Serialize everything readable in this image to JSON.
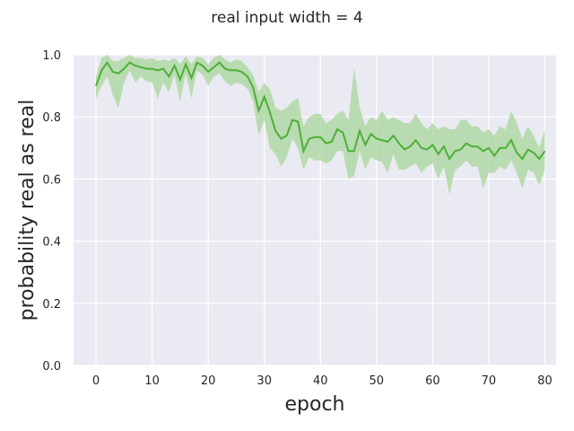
{
  "chart_data": {
    "type": "line",
    "title": "real input width = 4",
    "xlabel": "epoch",
    "ylabel": "probability real as real",
    "xlim": [
      -4,
      82
    ],
    "ylim": [
      0.0,
      1.0
    ],
    "xticks": [
      0,
      10,
      20,
      30,
      40,
      50,
      60,
      70,
      80
    ],
    "yticks": [
      0.0,
      0.2,
      0.4,
      0.6,
      0.8,
      1.0
    ],
    "xtick_labels": [
      "0",
      "10",
      "20",
      "30",
      "40",
      "50",
      "60",
      "70",
      "80"
    ],
    "ytick_labels": [
      "0.0",
      "0.2",
      "0.4",
      "0.6",
      "0.8",
      "1.0"
    ],
    "grid": true,
    "background": "#eaeaf2",
    "line_color": "#4daf36",
    "band_color": "#a8d69b",
    "x": [
      0,
      1,
      2,
      3,
      4,
      5,
      6,
      7,
      8,
      9,
      10,
      11,
      12,
      13,
      14,
      15,
      16,
      17,
      18,
      19,
      20,
      21,
      22,
      23,
      24,
      25,
      26,
      27,
      28,
      29,
      30,
      31,
      32,
      33,
      34,
      35,
      36,
      37,
      38,
      39,
      40,
      41,
      42,
      43,
      44,
      45,
      46,
      47,
      48,
      49,
      50,
      51,
      52,
      53,
      54,
      55,
      56,
      57,
      58,
      59,
      60,
      61,
      62,
      63,
      64,
      65,
      66,
      67,
      68,
      69,
      70,
      71,
      72,
      73,
      74,
      75,
      76,
      77,
      78,
      79,
      80
    ],
    "y": [
      0.9,
      0.95,
      0.975,
      0.945,
      0.94,
      0.955,
      0.975,
      0.965,
      0.96,
      0.955,
      0.955,
      0.95,
      0.955,
      0.93,
      0.965,
      0.92,
      0.97,
      0.925,
      0.975,
      0.965,
      0.945,
      0.96,
      0.975,
      0.955,
      0.95,
      0.95,
      0.945,
      0.93,
      0.895,
      0.82,
      0.865,
      0.815,
      0.755,
      0.73,
      0.74,
      0.79,
      0.785,
      0.69,
      0.73,
      0.735,
      0.735,
      0.715,
      0.72,
      0.76,
      0.75,
      0.69,
      0.69,
      0.755,
      0.71,
      0.745,
      0.73,
      0.725,
      0.72,
      0.74,
      0.715,
      0.695,
      0.705,
      0.725,
      0.7,
      0.695,
      0.71,
      0.68,
      0.705,
      0.665,
      0.69,
      0.695,
      0.715,
      0.705,
      0.705,
      0.69,
      0.7,
      0.675,
      0.7,
      0.7,
      0.725,
      0.685,
      0.665,
      0.695,
      0.685,
      0.665,
      0.69
    ],
    "y_lower": [
      0.86,
      0.9,
      0.93,
      0.87,
      0.83,
      0.91,
      0.95,
      0.91,
      0.93,
      0.915,
      0.91,
      0.86,
      0.91,
      0.88,
      0.935,
      0.85,
      0.94,
      0.86,
      0.95,
      0.935,
      0.9,
      0.93,
      0.94,
      0.915,
      0.9,
      0.91,
      0.905,
      0.89,
      0.85,
      0.74,
      0.79,
      0.7,
      0.68,
      0.64,
      0.67,
      0.73,
      0.7,
      0.63,
      0.67,
      0.66,
      0.66,
      0.65,
      0.66,
      0.69,
      0.69,
      0.6,
      0.61,
      0.69,
      0.63,
      0.67,
      0.66,
      0.655,
      0.62,
      0.68,
      0.63,
      0.63,
      0.64,
      0.65,
      0.62,
      0.64,
      0.65,
      0.6,
      0.64,
      0.55,
      0.63,
      0.64,
      0.66,
      0.64,
      0.64,
      0.57,
      0.62,
      0.62,
      0.64,
      0.63,
      0.66,
      0.62,
      0.57,
      0.63,
      0.62,
      0.58,
      0.63
    ],
    "y_upper": [
      0.93,
      0.99,
      1.0,
      0.98,
      0.98,
      0.99,
      1.0,
      0.99,
      0.99,
      0.985,
      0.99,
      0.98,
      0.985,
      0.98,
      0.99,
      0.97,
      0.995,
      0.97,
      0.995,
      0.99,
      0.97,
      0.99,
      1.0,
      0.985,
      0.975,
      0.985,
      0.98,
      0.96,
      0.935,
      0.88,
      0.91,
      0.89,
      0.83,
      0.82,
      0.83,
      0.85,
      0.86,
      0.77,
      0.8,
      0.81,
      0.81,
      0.78,
      0.79,
      0.81,
      0.82,
      0.79,
      0.96,
      0.83,
      0.77,
      0.8,
      0.79,
      0.82,
      0.79,
      0.8,
      0.79,
      0.78,
      0.78,
      0.81,
      0.78,
      0.76,
      0.78,
      0.76,
      0.77,
      0.76,
      0.76,
      0.79,
      0.79,
      0.77,
      0.77,
      0.75,
      0.76,
      0.74,
      0.77,
      0.76,
      0.82,
      0.78,
      0.73,
      0.77,
      0.74,
      0.7,
      0.76
    ]
  }
}
